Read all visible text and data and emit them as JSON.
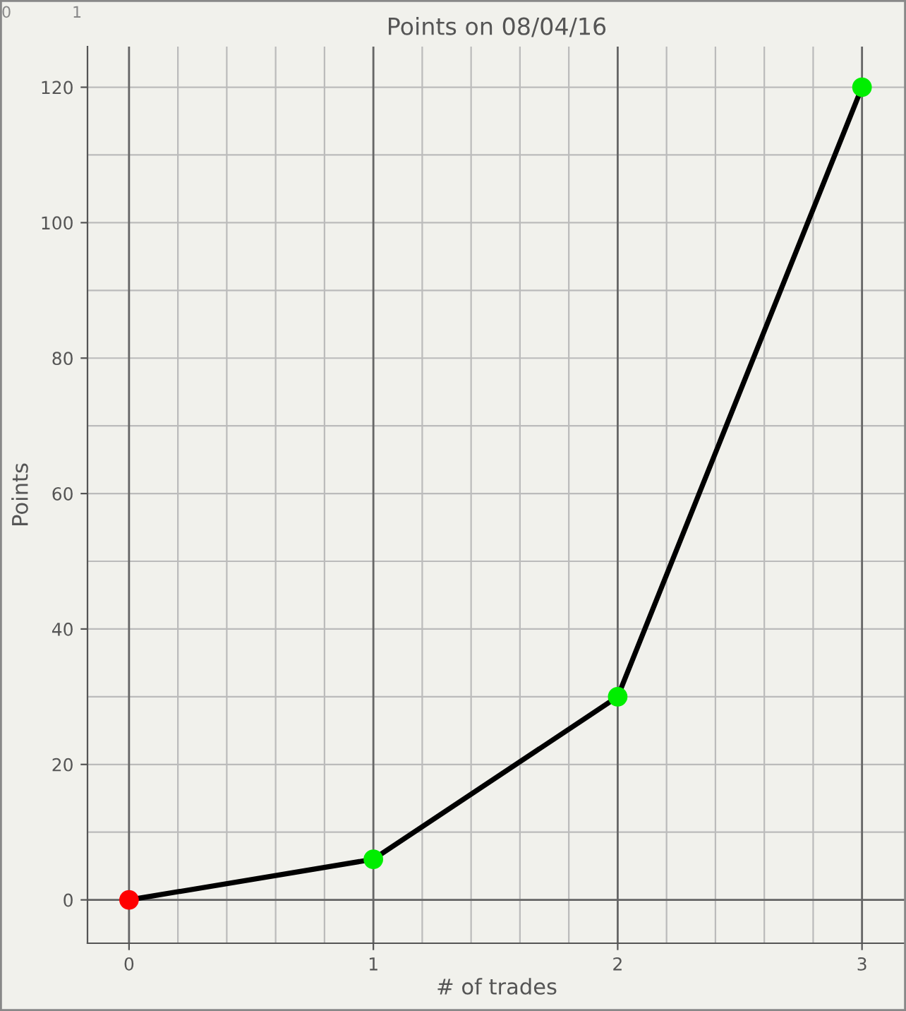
{
  "chart_data": {
    "type": "line",
    "title": "Points on 08/04/16",
    "xlabel": "# of trades",
    "ylabel": "Points",
    "x": [
      0,
      1,
      2,
      3
    ],
    "series": [
      {
        "color": "#000000",
        "colors": [
          "#ff0000",
          "#00ee00",
          "#00ee00",
          "#00ee00"
        ],
        "values": [
          0,
          6,
          30,
          120
        ]
      }
    ],
    "xlim": [
      -0.17,
      3.18
    ],
    "ylim": [
      -6.4,
      126
    ],
    "xticks": [
      0,
      1,
      2,
      3
    ],
    "yticks": [
      0,
      20,
      40,
      60,
      80,
      100,
      120
    ],
    "grid": true,
    "marker": "circle",
    "line_style": "solid",
    "legend": false,
    "annotations": [
      "0",
      "1"
    ]
  }
}
